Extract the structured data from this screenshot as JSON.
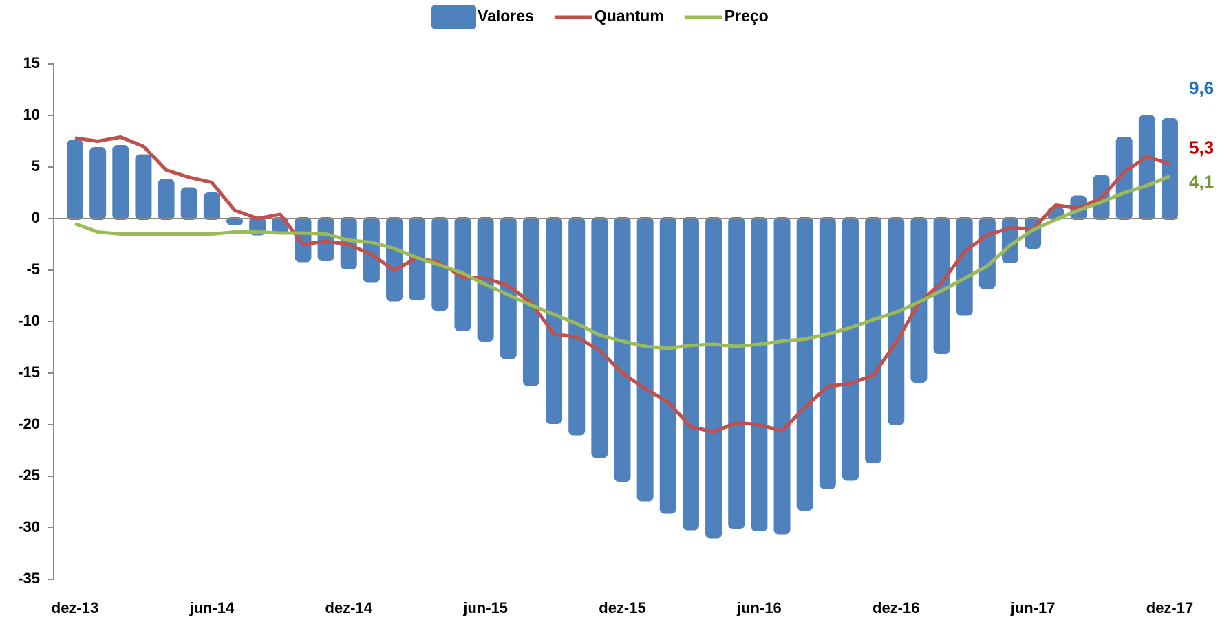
{
  "chart_data": {
    "type": "bar-line",
    "categories": [
      "dez-13",
      null,
      null,
      null,
      null,
      null,
      "jun-14",
      null,
      null,
      null,
      null,
      null,
      "dez-14",
      null,
      null,
      null,
      null,
      null,
      "jun-15",
      null,
      null,
      null,
      null,
      null,
      "dez-15",
      null,
      null,
      null,
      null,
      null,
      "jun-16",
      null,
      null,
      null,
      null,
      null,
      "dez-16",
      null,
      null,
      null,
      null,
      null,
      "jun-17",
      null,
      null,
      null,
      null,
      null,
      "dez-17"
    ],
    "ylim": [
      -35,
      15
    ],
    "yticks": [
      15,
      10,
      5,
      0,
      -5,
      -10,
      -15,
      -20,
      -25,
      -30,
      -35
    ],
    "legend": "top",
    "series": [
      {
        "name": "Valores",
        "kind": "bar",
        "color": "#4f81bd",
        "label_color": "#1f6eb8",
        "values": [
          7.5,
          6.8,
          7.0,
          6.1,
          3.7,
          2.9,
          2.4,
          -0.5,
          -1.5,
          -1.3,
          -4.1,
          -4.0,
          -4.8,
          -6.1,
          -7.9,
          -7.8,
          -8.8,
          -10.8,
          -11.8,
          -13.5,
          -16.1,
          -19.8,
          -20.9,
          -23.1,
          -25.4,
          -27.3,
          -28.5,
          -30.1,
          -30.9,
          -30.0,
          -30.2,
          -30.5,
          -28.2,
          -26.1,
          -25.3,
          -23.6,
          -19.9,
          -15.8,
          -13.0,
          -9.3,
          -6.7,
          -4.2,
          -2.8,
          1.0,
          2.1,
          4.1,
          7.8,
          9.9,
          9.6
        ],
        "value_labels": [
          null,
          null,
          null,
          null,
          null,
          null,
          null,
          null,
          null,
          null,
          null,
          null,
          null,
          null,
          null,
          null,
          null,
          null,
          null,
          null,
          null,
          null,
          null,
          null,
          null,
          null,
          null,
          null,
          null,
          null,
          null,
          null,
          null,
          null,
          null,
          null,
          null,
          null,
          null,
          null,
          null,
          null,
          null,
          null,
          null,
          null,
          null,
          null,
          "9,6"
        ]
      },
      {
        "name": "Quantum",
        "kind": "line",
        "color": "#c0504d",
        "label_color": "#c00000",
        "values": [
          7.8,
          7.5,
          7.9,
          7.0,
          4.7,
          4.0,
          3.5,
          0.8,
          0.0,
          0.4,
          -2.5,
          -2.2,
          -2.5,
          -3.5,
          -5.0,
          -3.8,
          -4.3,
          -5.7,
          -5.8,
          -6.5,
          -8.2,
          -11.2,
          -11.5,
          -12.8,
          -15.0,
          -16.5,
          -17.8,
          -20.2,
          -20.7,
          -19.8,
          -20.0,
          -20.6,
          -18.3,
          -16.3,
          -16.0,
          -15.2,
          -12.0,
          -8.2,
          -6.2,
          -3.2,
          -1.6,
          -0.9,
          -1.0,
          1.3,
          1.0,
          2.0,
          4.5,
          6.0,
          5.3
        ],
        "value_labels": [
          null,
          null,
          null,
          null,
          null,
          null,
          null,
          null,
          null,
          null,
          null,
          null,
          null,
          null,
          null,
          null,
          null,
          null,
          null,
          null,
          null,
          null,
          null,
          null,
          null,
          null,
          null,
          null,
          null,
          null,
          null,
          null,
          null,
          null,
          null,
          null,
          null,
          null,
          null,
          null,
          null,
          null,
          null,
          null,
          null,
          null,
          null,
          null,
          "5,3"
        ]
      },
      {
        "name": "Preço",
        "kind": "line",
        "color": "#9bbb59",
        "label_color": "#77933c",
        "values": [
          -0.5,
          -1.3,
          -1.5,
          -1.5,
          -1.5,
          -1.5,
          -1.5,
          -1.3,
          -1.3,
          -1.4,
          -1.4,
          -1.5,
          -2.1,
          -2.3,
          -2.9,
          -3.8,
          -4.5,
          -5.3,
          -6.4,
          -7.4,
          -8.4,
          -9.3,
          -10.2,
          -11.3,
          -11.9,
          -12.4,
          -12.6,
          -12.3,
          -12.2,
          -12.4,
          -12.2,
          -11.9,
          -11.7,
          -11.2,
          -10.6,
          -9.8,
          -9.1,
          -8.1,
          -7.0,
          -5.8,
          -4.6,
          -2.6,
          -1.1,
          -0.1,
          0.8,
          1.6,
          2.5,
          3.2,
          4.1
        ],
        "value_labels": [
          null,
          null,
          null,
          null,
          null,
          null,
          null,
          null,
          null,
          null,
          null,
          null,
          null,
          null,
          null,
          null,
          null,
          null,
          null,
          null,
          null,
          null,
          null,
          null,
          null,
          null,
          null,
          null,
          null,
          null,
          null,
          null,
          null,
          null,
          null,
          null,
          null,
          null,
          null,
          null,
          null,
          null,
          null,
          null,
          null,
          null,
          null,
          null,
          "4,1"
        ]
      }
    ]
  }
}
